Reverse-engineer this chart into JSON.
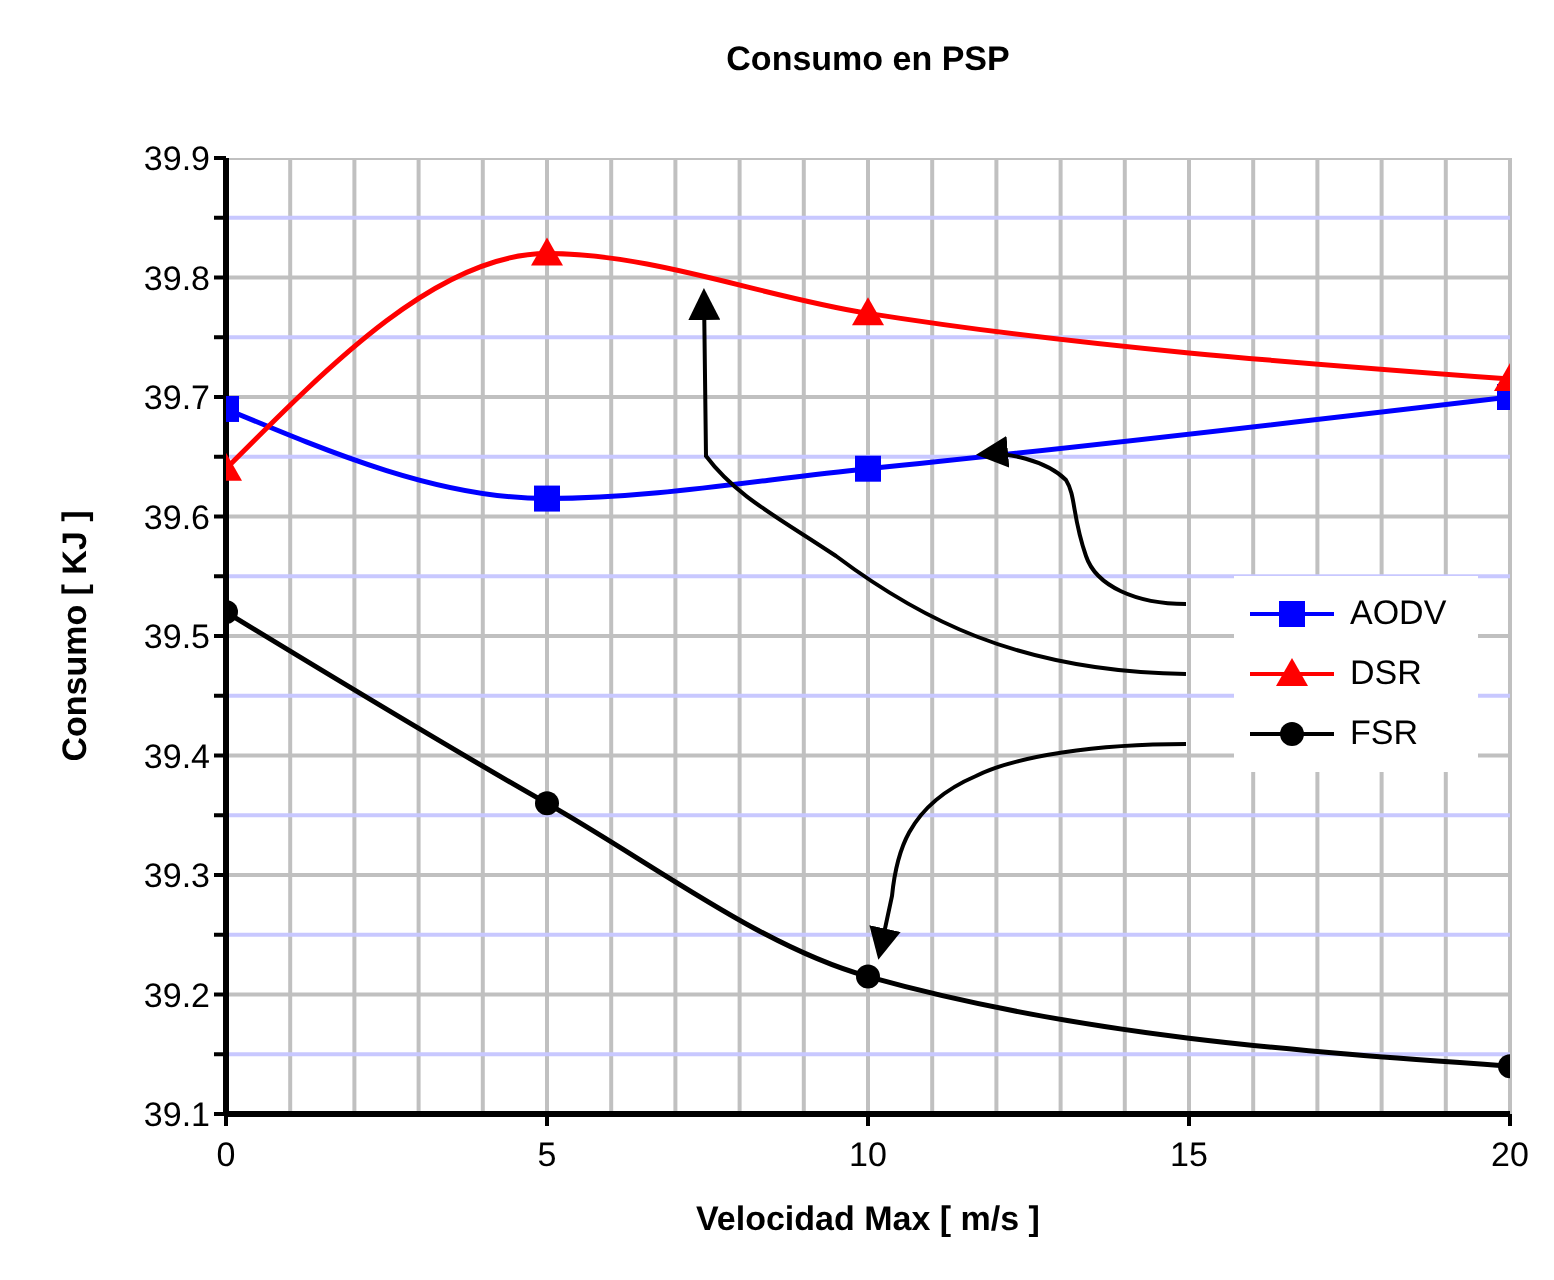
{
  "chart_data": {
    "type": "line",
    "title": "Consumo en PSP",
    "xlabel": "Velocidad Max [ m/s ]",
    "ylabel": "Consumo [ KJ ]",
    "x": [
      0,
      5,
      10,
      20
    ],
    "series": [
      {
        "name": "AODV",
        "color": "#0000ff",
        "marker": "square",
        "values": [
          39.69,
          39.615,
          39.64,
          39.7
        ]
      },
      {
        "name": "DSR",
        "color": "#ff0000",
        "marker": "triangle",
        "values": [
          39.64,
          39.82,
          39.77,
          39.715
        ]
      },
      {
        "name": "FSR",
        "color": "#000000",
        "marker": "circle",
        "values": [
          39.52,
          39.36,
          39.215,
          39.14
        ]
      }
    ],
    "xlim": [
      0,
      20
    ],
    "xticks": [
      0,
      5,
      10,
      15,
      20
    ],
    "ylim": [
      39.1,
      39.9
    ],
    "yticks": [
      39.1,
      {
        "value": 39.15,
        "label": null
      },
      39.2,
      {
        "value": 39.25,
        "label": null
      },
      39.3,
      {
        "value": 39.35,
        "label": null
      },
      39.4,
      {
        "value": 39.45,
        "label": null
      },
      39.5,
      {
        "value": 39.55,
        "label": null
      },
      39.6,
      {
        "value": 39.65,
        "label": null
      },
      39.7,
      {
        "value": 39.75,
        "label": null
      },
      39.8,
      {
        "value": 39.85,
        "label": null
      },
      39.9
    ],
    "grid": true,
    "legend": "right"
  }
}
